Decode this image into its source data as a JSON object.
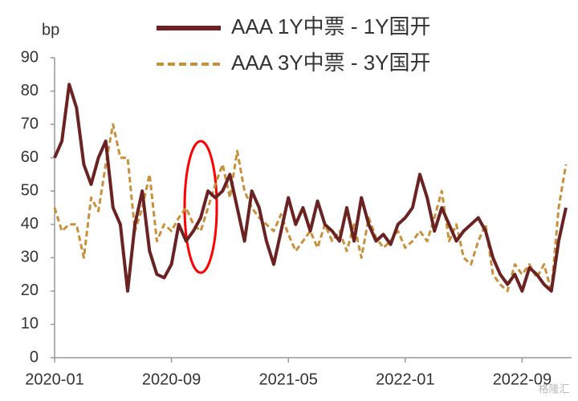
{
  "chart_data": {
    "type": "line",
    "y_label": "bp",
    "categories": [
      "2020-01",
      null,
      null,
      null,
      null,
      null,
      null,
      null,
      null,
      null,
      null,
      null,
      null,
      null,
      null,
      null,
      "2020-09",
      null,
      null,
      null,
      null,
      null,
      null,
      null,
      null,
      null,
      null,
      null,
      null,
      null,
      null,
      null,
      "2021-05",
      null,
      null,
      null,
      null,
      null,
      null,
      null,
      null,
      null,
      null,
      null,
      null,
      null,
      null,
      null,
      "2022-01",
      null,
      null,
      null,
      null,
      null,
      null,
      null,
      null,
      null,
      null,
      null,
      null,
      null,
      null,
      null,
      "2022-09",
      null,
      null,
      null,
      null,
      null,
      null
    ],
    "series": [
      {
        "name": "AAA 1Y中票 - 1Y国开",
        "color": "#6b2222",
        "style": "solid",
        "values": [
          60,
          65,
          82,
          75,
          58,
          52,
          60,
          65,
          45,
          40,
          20,
          40,
          50,
          32,
          25,
          24,
          28,
          40,
          35,
          38,
          42,
          50,
          48,
          50,
          55,
          45,
          35,
          50,
          45,
          35,
          28,
          38,
          48,
          40,
          45,
          38,
          47,
          40,
          38,
          35,
          45,
          35,
          48,
          40,
          35,
          37,
          34,
          40,
          42,
          45,
          55,
          48,
          38,
          45,
          40,
          35,
          38,
          40,
          42,
          38,
          30,
          25,
          22,
          25,
          20,
          27,
          25,
          22,
          20,
          35,
          45
        ]
      },
      {
        "name": "AAA 3Y中票 - 3Y国开",
        "color": "#c8903a",
        "style": "dashed",
        "values": [
          45,
          38,
          40,
          40,
          30,
          48,
          44,
          58,
          70,
          60,
          60,
          38,
          45,
          55,
          35,
          40,
          38,
          42,
          45,
          40,
          38,
          45,
          52,
          58,
          48,
          62,
          50,
          45,
          42,
          40,
          38,
          43,
          37,
          32,
          35,
          38,
          33,
          40,
          35,
          38,
          32,
          40,
          30,
          42,
          36,
          33,
          35,
          38,
          33,
          35,
          38,
          35,
          42,
          50,
          35,
          40,
          30,
          28,
          35,
          40,
          25,
          22,
          20,
          28,
          25,
          28,
          24,
          28,
          20,
          45,
          58
        ]
      }
    ],
    "ylim": [
      0,
      90
    ],
    "yticks": [
      0,
      10,
      20,
      30,
      40,
      50,
      60,
      70,
      80,
      90
    ],
    "grid": false,
    "watermark": "格隆汇"
  }
}
